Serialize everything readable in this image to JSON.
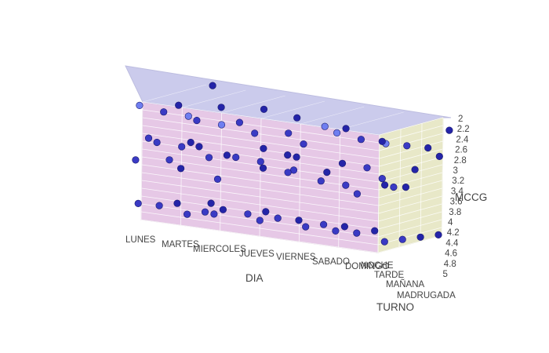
{
  "chart_data": {
    "type": "scatter3d",
    "x_axis": {
      "title": "DIA",
      "categories": [
        "LUNES",
        "MARTES",
        "MIERCOLES",
        "JUEVES",
        "VIERNES",
        "SABADO",
        "DOMINGO"
      ]
    },
    "y_axis": {
      "title": "TURNO",
      "categories": [
        "NOCHE",
        "TARDE",
        "MAÑANA",
        "MADRUGADA"
      ]
    },
    "z_axis": {
      "title": "MCCG",
      "tick_labels": [
        "2",
        "2.2",
        "2.4",
        "2.6",
        "2.8",
        "3",
        "3.2",
        "3.4",
        "3.6",
        "3.8",
        "4",
        "4.2",
        "4.4",
        "4.6",
        "4.8",
        "5"
      ],
      "range": [
        2,
        5
      ],
      "reversed": true
    },
    "wall_colors": {
      "back": "#e6c8e6",
      "floor": "#cbcbec",
      "side": "#e8e8c8"
    },
    "marker_color": "#2a2aa0",
    "points": [
      {
        "x": "LUNES",
        "y": "NOCHE",
        "z": 2.1
      },
      {
        "x": "LUNES",
        "y": "NOCHE",
        "z": 2.9
      },
      {
        "x": "LUNES",
        "y": "NOCHE",
        "z": 3.5
      },
      {
        "x": "LUNES",
        "y": "NOCHE",
        "z": 4.6
      },
      {
        "x": "LUNES",
        "y": "TARDE",
        "z": 2.4
      },
      {
        "x": "LUNES",
        "y": "TARDE",
        "z": 3.2
      },
      {
        "x": "LUNES",
        "y": "TARDE",
        "z": 3.6
      },
      {
        "x": "LUNES",
        "y": "TARDE",
        "z": 4.8
      },
      {
        "x": "LUNES",
        "y": "MAÑANA",
        "z": 2.4
      },
      {
        "x": "LUNES",
        "y": "MAÑANA",
        "z": 3.3
      },
      {
        "x": "LUNES",
        "y": "MAÑANA",
        "z": 4.0
      },
      {
        "x": "LUNES",
        "y": "MAÑANA",
        "z": 4.9
      },
      {
        "x": "LUNES",
        "y": "MADRUGADA",
        "z": 2.0
      },
      {
        "x": "LUNES",
        "y": "MADRUGADA",
        "z": 3.6
      },
      {
        "x": "LUNES",
        "y": "MADRUGADA",
        "z": 5.0
      },
      {
        "x": "MARTES",
        "y": "NOCHE",
        "z": 2.2
      },
      {
        "x": "MARTES",
        "y": "NOCHE",
        "z": 3.0
      },
      {
        "x": "MARTES",
        "y": "NOCHE",
        "z": 4.7
      },
      {
        "x": "MARTES",
        "y": "TARDE",
        "z": 2.5
      },
      {
        "x": "MARTES",
        "y": "TARDE",
        "z": 3.4
      },
      {
        "x": "MARTES",
        "y": "TARDE",
        "z": 4.8
      },
      {
        "x": "MARTES",
        "y": "MAÑANA",
        "z": 2.3
      },
      {
        "x": "MARTES",
        "y": "MAÑANA",
        "z": 3.5
      },
      {
        "x": "MARTES",
        "y": "MAÑANA",
        "z": 4.9
      },
      {
        "x": "MIERCOLES",
        "y": "NOCHE",
        "z": 2.3
      },
      {
        "x": "MIERCOLES",
        "y": "NOCHE",
        "z": 3.7
      },
      {
        "x": "MIERCOLES",
        "y": "NOCHE",
        "z": 4.6
      },
      {
        "x": "MIERCOLES",
        "y": "TARDE",
        "z": 2.4
      },
      {
        "x": "MIERCOLES",
        "y": "TARDE",
        "z": 3.3
      },
      {
        "x": "MIERCOLES",
        "y": "TARDE",
        "z": 4.7
      },
      {
        "x": "MIERCOLES",
        "y": "MAÑANA",
        "z": 2.2
      },
      {
        "x": "MIERCOLES",
        "y": "MAÑANA",
        "z": 3.2
      },
      {
        "x": "MIERCOLES",
        "y": "MAÑANA",
        "z": 3.7
      },
      {
        "x": "MIERCOLES",
        "y": "MAÑANA",
        "z": 4.8
      },
      {
        "x": "MIERCOLES",
        "y": "MADRUGADA",
        "z": 3.5
      },
      {
        "x": "JUEVES",
        "y": "NOCHE",
        "z": 2.4
      },
      {
        "x": "JUEVES",
        "y": "NOCHE",
        "z": 3.1
      },
      {
        "x": "JUEVES",
        "y": "NOCHE",
        "z": 4.6
      },
      {
        "x": "JUEVES",
        "y": "TARDE",
        "z": 2.5
      },
      {
        "x": "JUEVES",
        "y": "TARDE",
        "z": 3.5
      },
      {
        "x": "JUEVES",
        "y": "TARDE",
        "z": 4.7
      },
      {
        "x": "JUEVES",
        "y": "MAÑANA",
        "z": 2.3
      },
      {
        "x": "JUEVES",
        "y": "MAÑANA",
        "z": 3.3
      },
      {
        "x": "JUEVES",
        "y": "MAÑANA",
        "z": 4.9
      },
      {
        "x": "JUEVES",
        "y": "MADRUGADA",
        "z": 3.8
      },
      {
        "x": "VIERNES",
        "y": "NOCHE",
        "z": 2.5
      },
      {
        "x": "VIERNES",
        "y": "NOCHE",
        "z": 3.2
      },
      {
        "x": "VIERNES",
        "y": "NOCHE",
        "z": 4.6
      },
      {
        "x": "VIERNES",
        "y": "TARDE",
        "z": 2.2
      },
      {
        "x": "VIERNES",
        "y": "TARDE",
        "z": 3.6
      },
      {
        "x": "VIERNES",
        "y": "TARDE",
        "z": 4.7
      },
      {
        "x": "VIERNES",
        "y": "MAÑANA",
        "z": 2.4
      },
      {
        "x": "VIERNES",
        "y": "MAÑANA",
        "z": 3.3
      },
      {
        "x": "VIERNES",
        "y": "MAÑANA",
        "z": 4.9
      },
      {
        "x": "SABADO",
        "y": "NOCHE",
        "z": 2.1
      },
      {
        "x": "SABADO",
        "y": "NOCHE",
        "z": 3.4
      },
      {
        "x": "SABADO",
        "y": "NOCHE",
        "z": 4.6
      },
      {
        "x": "SABADO",
        "y": "TARDE",
        "z": 2.4
      },
      {
        "x": "SABADO",
        "y": "TARDE",
        "z": 3.1
      },
      {
        "x": "SABADO",
        "y": "TARDE",
        "z": 3.8
      },
      {
        "x": "SABADO",
        "y": "TARDE",
        "z": 4.8
      },
      {
        "x": "SABADO",
        "y": "MAÑANA",
        "z": 2.6
      },
      {
        "x": "SABADO",
        "y": "MAÑANA",
        "z": 3.7
      },
      {
        "x": "SABADO",
        "y": "MAÑANA",
        "z": 4.9
      },
      {
        "x": "SABADO",
        "y": "MADRUGADA",
        "z": 3.9
      },
      {
        "x": "DOMINGO",
        "y": "NOCHE",
        "z": 2.2
      },
      {
        "x": "DOMINGO",
        "y": "NOCHE",
        "z": 3.1
      },
      {
        "x": "DOMINGO",
        "y": "NOCHE",
        "z": 4.7
      },
      {
        "x": "DOMINGO",
        "y": "TARDE",
        "z": 2.4
      },
      {
        "x": "DOMINGO",
        "y": "TARDE",
        "z": 3.5
      },
      {
        "x": "DOMINGO",
        "y": "TARDE",
        "z": 4.8
      },
      {
        "x": "DOMINGO",
        "y": "MAÑANA",
        "z": 2.6
      },
      {
        "x": "DOMINGO",
        "y": "MAÑANA",
        "z": 3.2
      },
      {
        "x": "DOMINGO",
        "y": "MAÑANA",
        "z": 4.9
      },
      {
        "x": "DOMINGO",
        "y": "MADRUGADA",
        "z": 2.3
      },
      {
        "x": "DOMINGO",
        "y": "MADRUGADA",
        "z": 3.0
      },
      {
        "x": "DOMINGO",
        "y": "MADRUGADA",
        "z": 5.0
      }
    ]
  }
}
